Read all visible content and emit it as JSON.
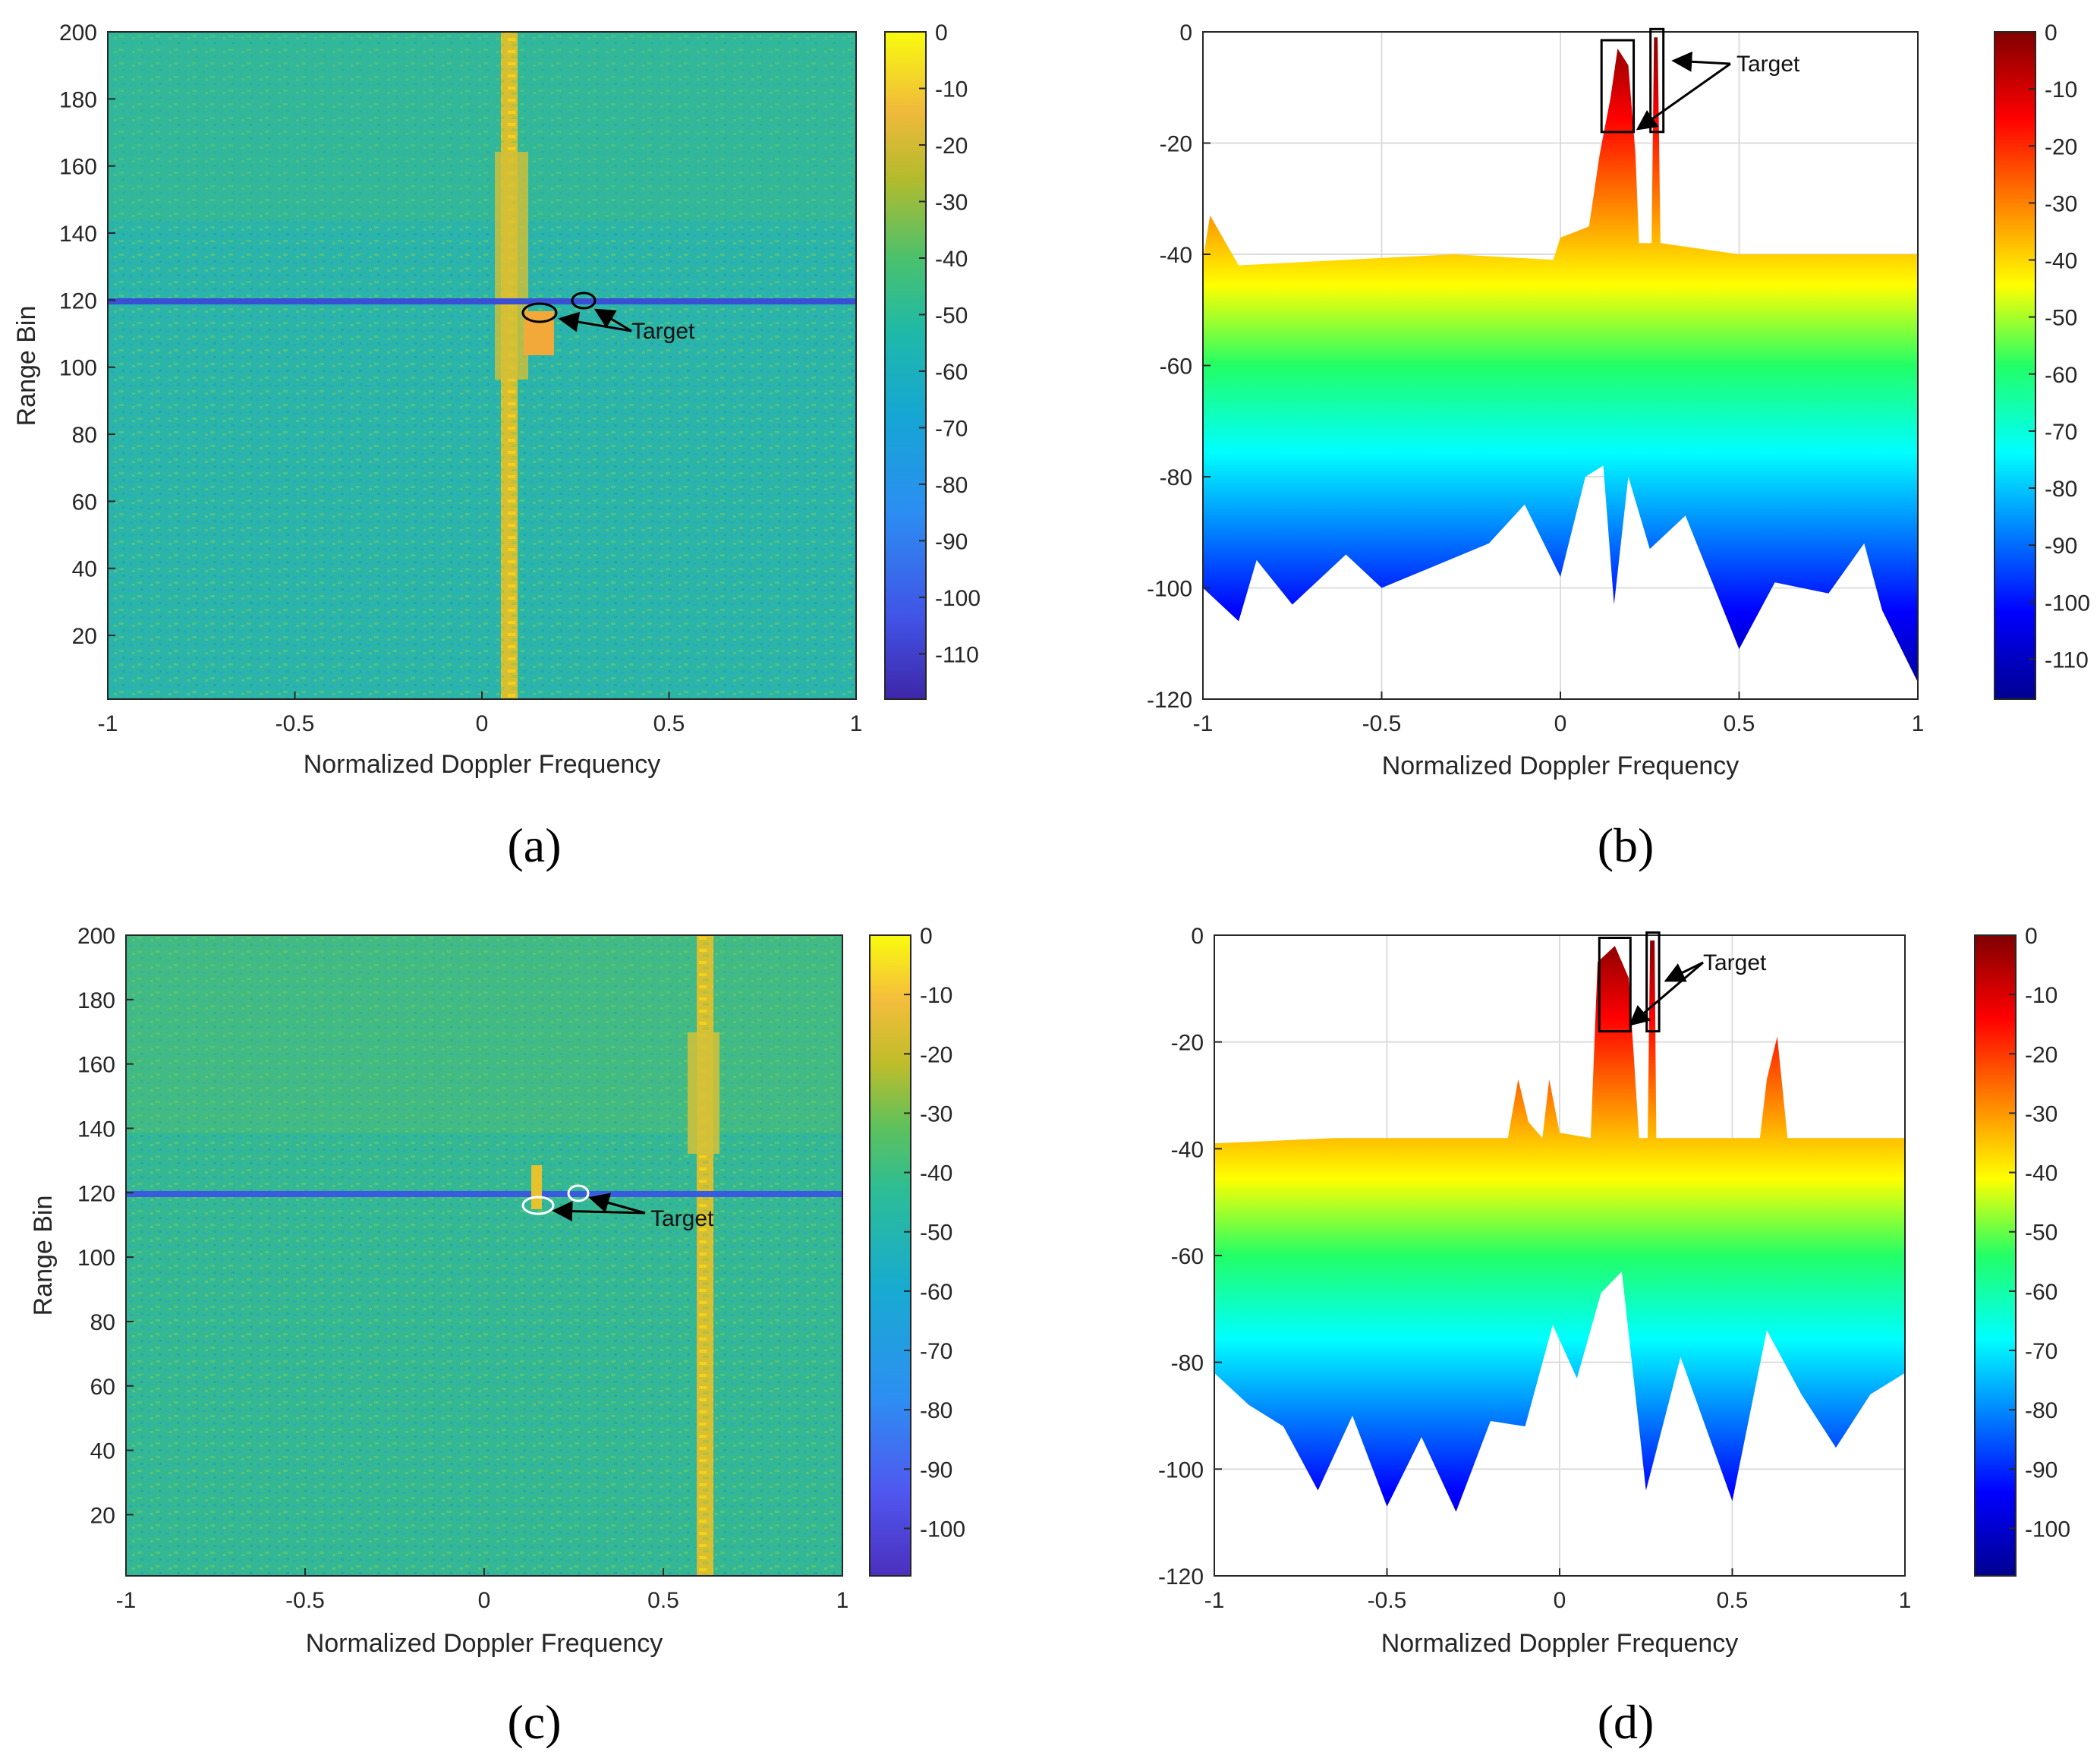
{
  "figure": {
    "panels": [
      "(a)",
      "(b)",
      "(c)",
      "(d)"
    ]
  },
  "chart_data": [
    {
      "id": "a",
      "type": "heatmap",
      "caption": "(a)",
      "xlabel": "Normalized Doppler Frequency",
      "ylabel": "Range Bin",
      "xlim": [
        -1,
        1
      ],
      "ylim": [
        1,
        200
      ],
      "xticks": [
        "-1",
        "-0.5",
        "0",
        "0.5",
        "1"
      ],
      "yticks": [
        "20",
        "40",
        "60",
        "80",
        "100",
        "120",
        "140",
        "160",
        "180",
        "200"
      ],
      "colorbar": {
        "colormap": "parula",
        "min": -118,
        "max": 0,
        "ticks": [
          "0",
          "-10",
          "-20",
          "-30",
          "-40",
          "-50",
          "-60",
          "-70",
          "-80",
          "-90",
          "-100",
          "-110"
        ]
      },
      "annotation": "Target",
      "features": {
        "clutter_ridge_doppler": 0.07,
        "notch_range_bin": 120,
        "targets": [
          {
            "doppler": 0.16,
            "range_bin": 116
          },
          {
            "doppler": 0.27,
            "range_bin": 120
          }
        ]
      }
    },
    {
      "id": "b",
      "type": "area",
      "caption": "(b)",
      "xlabel": "Normalized Doppler Frequency",
      "ylabel": "",
      "xlim": [
        -1,
        1
      ],
      "ylim": [
        -120,
        0
      ],
      "xticks": [
        "-1",
        "-0.5",
        "0",
        "0.5",
        "1"
      ],
      "yticks": [
        "0",
        "-20",
        "-40",
        "-60",
        "-80",
        "-100",
        "-120"
      ],
      "grid": true,
      "colorbar": {
        "colormap": "jet",
        "min": -117,
        "max": 0,
        "ticks": [
          "0",
          "-10",
          "-20",
          "-30",
          "-40",
          "-50",
          "-60",
          "-70",
          "-80",
          "-90",
          "-100",
          "-110"
        ]
      },
      "annotation": "Target",
      "upper_envelope": [
        [
          -1,
          -41
        ],
        [
          -0.98,
          -33
        ],
        [
          -0.9,
          -42
        ],
        [
          -0.6,
          -41
        ],
        [
          -0.3,
          -40
        ],
        [
          -0.02,
          -41
        ],
        [
          0.0,
          -37
        ],
        [
          0.08,
          -35
        ],
        [
          0.11,
          -22
        ],
        [
          0.14,
          -12
        ],
        [
          0.16,
          -3
        ],
        [
          0.19,
          -6
        ],
        [
          0.21,
          -22
        ],
        [
          0.22,
          -38
        ],
        [
          0.255,
          -38
        ],
        [
          0.262,
          -1
        ],
        [
          0.272,
          -1
        ],
        [
          0.28,
          -38
        ],
        [
          0.5,
          -40
        ],
        [
          1,
          -40
        ]
      ],
      "lower_envelope": [
        [
          -1,
          -100
        ],
        [
          -0.9,
          -106
        ],
        [
          -0.85,
          -95
        ],
        [
          -0.75,
          -103
        ],
        [
          -0.6,
          -94
        ],
        [
          -0.5,
          -100
        ],
        [
          -0.35,
          -96
        ],
        [
          -0.2,
          -92
        ],
        [
          -0.1,
          -85
        ],
        [
          0.0,
          -98
        ],
        [
          0.07,
          -80
        ],
        [
          0.12,
          -78
        ],
        [
          0.15,
          -103
        ],
        [
          0.19,
          -80
        ],
        [
          0.25,
          -93
        ],
        [
          0.35,
          -87
        ],
        [
          0.5,
          -111
        ],
        [
          0.6,
          -99
        ],
        [
          0.75,
          -101
        ],
        [
          0.85,
          -92
        ],
        [
          0.9,
          -104
        ],
        [
          1,
          -117
        ]
      ],
      "targets": [
        {
          "doppler": 0.16,
          "level": -3
        },
        {
          "doppler": 0.27,
          "level": -1
        }
      ]
    },
    {
      "id": "c",
      "type": "heatmap",
      "caption": "(c)",
      "xlabel": "Normalized Doppler Frequency",
      "ylabel": "Range Bin",
      "xlim": [
        -1,
        1
      ],
      "ylim": [
        1,
        200
      ],
      "xticks": [
        "-1",
        "-0.5",
        "0",
        "0.5",
        "1"
      ],
      "yticks": [
        "20",
        "40",
        "60",
        "80",
        "100",
        "120",
        "140",
        "160",
        "180",
        "200"
      ],
      "colorbar": {
        "colormap": "parula",
        "min": -108,
        "max": 0,
        "ticks": [
          "0",
          "-10",
          "-20",
          "-30",
          "-40",
          "-50",
          "-60",
          "-70",
          "-80",
          "-90",
          "-100"
        ]
      },
      "annotation": "Target",
      "features": {
        "clutter_ridge_doppler": 0.61,
        "notch_range_bin": 120,
        "targets": [
          {
            "doppler": 0.15,
            "range_bin": 116
          },
          {
            "doppler": 0.27,
            "range_bin": 120
          }
        ]
      }
    },
    {
      "id": "d",
      "type": "area",
      "caption": "(d)",
      "xlabel": "Normalized Doppler Frequency",
      "ylabel": "",
      "xlim": [
        -1,
        1
      ],
      "ylim": [
        -120,
        0
      ],
      "xticks": [
        "-1",
        "-0.5",
        "0",
        "0.5",
        "1"
      ],
      "yticks": [
        "0",
        "-20",
        "-40",
        "-60",
        "-80",
        "-100",
        "-120"
      ],
      "grid": true,
      "colorbar": {
        "colormap": "jet",
        "min": -108,
        "max": 0,
        "ticks": [
          "0",
          "-10",
          "-20",
          "-30",
          "-40",
          "-50",
          "-60",
          "-70",
          "-80",
          "-90",
          "-100"
        ]
      },
      "annotation": "Target",
      "upper_envelope": [
        [
          -1,
          -39
        ],
        [
          -0.65,
          -38
        ],
        [
          -0.4,
          -38
        ],
        [
          -0.15,
          -38
        ],
        [
          -0.12,
          -27
        ],
        [
          -0.09,
          -35
        ],
        [
          -0.05,
          -38
        ],
        [
          -0.03,
          -27
        ],
        [
          0.0,
          -37
        ],
        [
          0.09,
          -38
        ],
        [
          0.11,
          -5
        ],
        [
          0.16,
          -2
        ],
        [
          0.2,
          -8
        ],
        [
          0.23,
          -38
        ],
        [
          0.255,
          -38
        ],
        [
          0.262,
          -1
        ],
        [
          0.275,
          -1
        ],
        [
          0.28,
          -38
        ],
        [
          0.58,
          -38
        ],
        [
          0.6,
          -27
        ],
        [
          0.63,
          -19
        ],
        [
          0.66,
          -38
        ],
        [
          1,
          -38
        ]
      ],
      "lower_envelope": [
        [
          -1,
          -82
        ],
        [
          -0.9,
          -88
        ],
        [
          -0.8,
          -92
        ],
        [
          -0.7,
          -104
        ],
        [
          -0.6,
          -90
        ],
        [
          -0.5,
          -107
        ],
        [
          -0.4,
          -94
        ],
        [
          -0.3,
          -108
        ],
        [
          -0.2,
          -91
        ],
        [
          -0.1,
          -92
        ],
        [
          -0.02,
          -73
        ],
        [
          0.05,
          -83
        ],
        [
          0.12,
          -67
        ],
        [
          0.18,
          -63
        ],
        [
          0.25,
          -104
        ],
        [
          0.35,
          -79
        ],
        [
          0.5,
          -106
        ],
        [
          0.6,
          -74
        ],
        [
          0.7,
          -86
        ],
        [
          0.8,
          -96
        ],
        [
          0.9,
          -86
        ],
        [
          1,
          -82
        ]
      ],
      "targets": [
        {
          "doppler": 0.16,
          "level": -2
        },
        {
          "doppler": 0.27,
          "level": -1
        }
      ]
    }
  ]
}
